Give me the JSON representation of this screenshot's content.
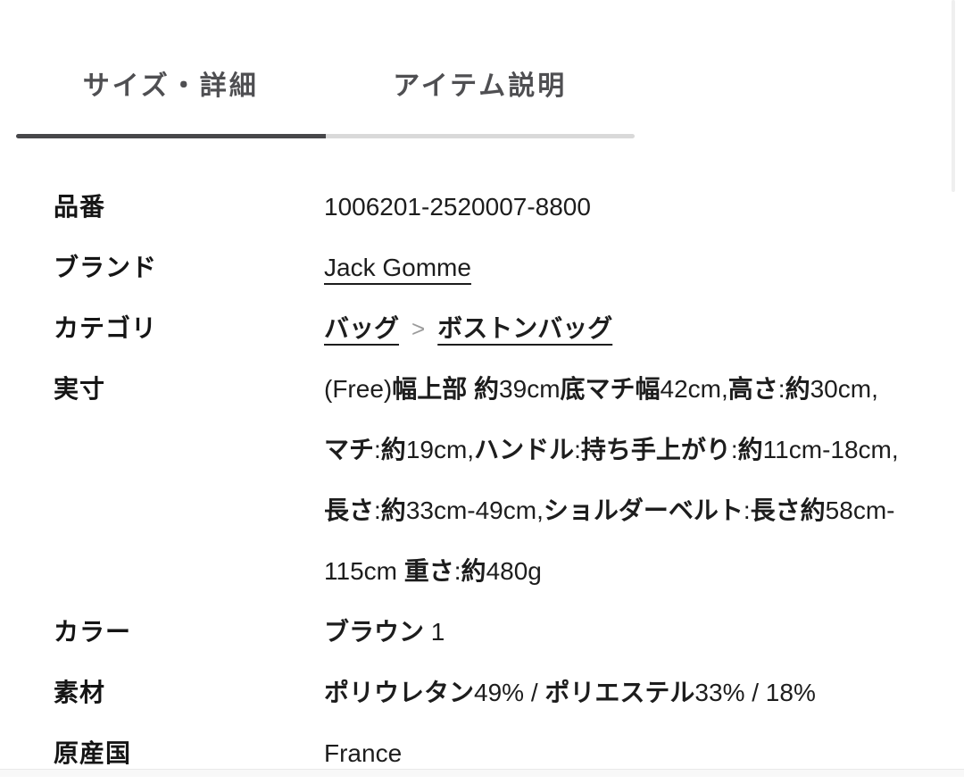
{
  "tabs": {
    "size_details": "サイズ・詳細",
    "item_description": "アイテム説明"
  },
  "spec": {
    "item_number": {
      "label": "品番",
      "value": "1006201-2520007-8800"
    },
    "brand": {
      "label": "ブランド",
      "link_text": "Jack Gomme"
    },
    "category": {
      "label": "カテゴリ",
      "link1": "バッグ",
      "separator": ">",
      "link2": "ボストンバッグ"
    },
    "measurements": {
      "label": "実寸",
      "value": "(Free)幅上部 約39cm底マチ幅42cm,高さ:約30cm,マチ:約19cm,ハンドル:持ち手上がり:約11cm-18cm,長さ:約33cm-49cm,ショルダーベルト:長さ約58cm-115cm 重さ:約480g"
    },
    "color": {
      "label": "カラー",
      "value": "ブラウン 1"
    },
    "material": {
      "label": "素材",
      "value": "ポリウレタン49% / ポリエステル33% / 18%"
    },
    "origin": {
      "label": "原産国",
      "value": "France"
    }
  },
  "colors": {
    "active_tab_underline": "#47474a",
    "inactive_tab_underline": "#d9d9d9",
    "tab_text": "#4f4f52",
    "body_text": "#1d1d1d",
    "breadcrumb_separator": "#9b9b9b"
  }
}
